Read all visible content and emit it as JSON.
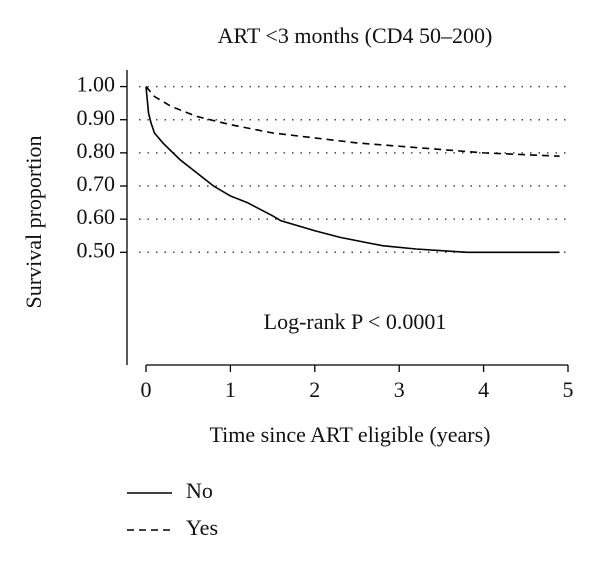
{
  "chart_data": {
    "type": "line",
    "title": "ART <3 months (CD4 50–200)",
    "x_label": "Time since ART eligible (years)",
    "y_label": "Survival proportion",
    "annotation": "Log-rank P < 0.0001",
    "xlim": [
      0,
      5
    ],
    "xticks": [
      0,
      1,
      2,
      3,
      4,
      5
    ],
    "ylim": [
      0.16,
      1.05
    ],
    "yticks": [
      {
        "value": 0.5,
        "label": "0.50"
      },
      {
        "value": 0.6,
        "label": "0.60"
      },
      {
        "value": 0.7,
        "label": "0.70"
      },
      {
        "value": 0.8,
        "label": "0.80"
      },
      {
        "value": 0.9,
        "label": "0.90"
      },
      {
        "value": 1.0,
        "label": "1.00"
      }
    ],
    "grid": true,
    "legend": "bottom-left",
    "series": [
      {
        "name": "No",
        "color": "#000000",
        "line_style": "solid",
        "x": [
          0,
          0.03,
          0.06,
          0.1,
          0.2,
          0.4,
          0.6,
          0.8,
          1.0,
          1.2,
          1.5,
          1.6,
          1.8,
          2.0,
          2.3,
          2.6,
          2.8,
          3.2,
          3.8,
          4.9
        ],
        "values": [
          1.0,
          0.92,
          0.89,
          0.86,
          0.83,
          0.78,
          0.74,
          0.7,
          0.67,
          0.65,
          0.61,
          0.595,
          0.58,
          0.565,
          0.545,
          0.53,
          0.52,
          0.51,
          0.5,
          0.5
        ]
      },
      {
        "name": "Yes",
        "color": "#000000",
        "line_style": "dashed",
        "x": [
          0,
          0.1,
          0.3,
          0.6,
          1.0,
          1.5,
          2.0,
          2.5,
          3.0,
          3.5,
          4.0,
          4.9
        ],
        "values": [
          1.0,
          0.97,
          0.94,
          0.91,
          0.885,
          0.86,
          0.845,
          0.83,
          0.82,
          0.81,
          0.8,
          0.79
        ]
      }
    ]
  }
}
